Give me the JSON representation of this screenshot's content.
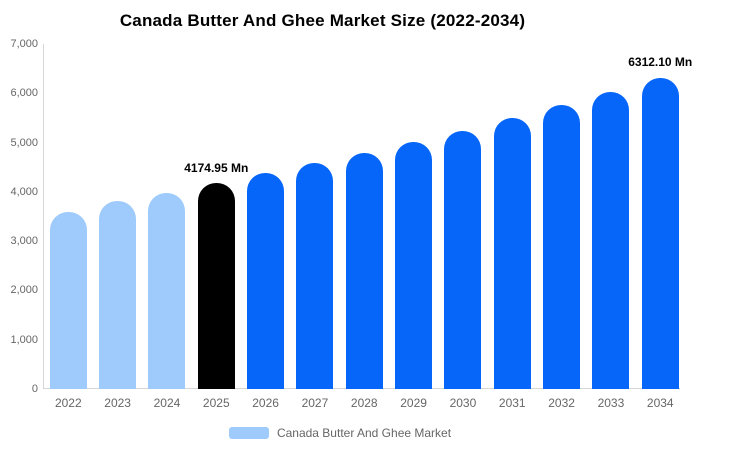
{
  "chart_data": {
    "type": "bar",
    "title": "Canada Butter And Ghee Market Size (2022-2034)",
    "categories": [
      "2022",
      "2023",
      "2024",
      "2025",
      "2026",
      "2027",
      "2028",
      "2029",
      "2030",
      "2031",
      "2032",
      "2033",
      "2034"
    ],
    "values": [
      3590,
      3810,
      3980,
      4174.95,
      4380,
      4580,
      4790,
      5010,
      5240,
      5500,
      5760,
      6030,
      6312.1
    ],
    "unit": "Mn",
    "ylim": [
      0,
      7000
    ],
    "ytick_labels": [
      "0",
      "1,000",
      "2,000",
      "3,000",
      "4,000",
      "5,000",
      "6,000",
      "7,000"
    ],
    "grid": false,
    "bar_colors": [
      "#9ECBFC",
      "#9ECBFC",
      "#9ECBFC",
      "#000000",
      "#0666FA",
      "#0666FA",
      "#0666FA",
      "#0666FA",
      "#0666FA",
      "#0666FA",
      "#0666FA",
      "#0666FA",
      "#0666FA"
    ],
    "data_labels": [
      {
        "index": 3,
        "text": "4174.95 Mn"
      },
      {
        "index": 12,
        "text": "6312.10 Mn"
      }
    ],
    "colors": {
      "historical_bar": "#9ECBFC",
      "highlight_bar": "#000000",
      "forecast_bar": "#0666FA",
      "axis_line": "#d6d6d6",
      "tick_text": "#666666",
      "title_text": "#000000"
    },
    "legend": {
      "label": "Canada Butter And Ghee Market",
      "swatch_color": "#9ECBFC",
      "position": "bottom"
    }
  }
}
